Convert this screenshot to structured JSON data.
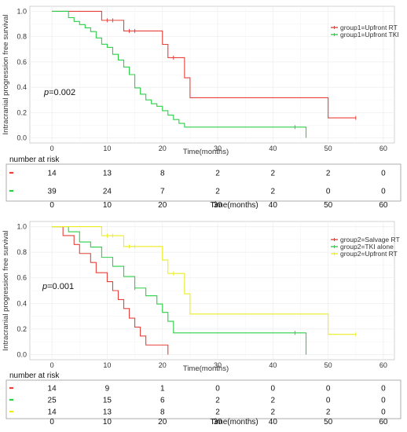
{
  "chart_data": [
    {
      "type": "line",
      "ylabel": "Intracranial progression free survival",
      "xlabel": "Time(months)",
      "xlim": [
        -4,
        62
      ],
      "ylim": [
        -0.04,
        1.04
      ],
      "xticks": [
        0,
        10,
        20,
        30,
        40,
        50,
        60
      ],
      "yticks": [
        0.0,
        0.2,
        0.4,
        0.6,
        0.8,
        1.0
      ],
      "ytick_labels": [
        "0.0",
        "0.2",
        "0.4",
        "0.6",
        "0.8",
        "1.0"
      ],
      "grid": true,
      "legend_position": "top-right",
      "p_value": {
        "label": "p",
        "text": "=0.002"
      },
      "series": [
        {
          "name": "group1=Upfront RT",
          "color": "#e8413b",
          "steps": [
            [
              0,
              1.0
            ],
            [
              9,
              0.929
            ],
            [
              13,
              0.845
            ],
            [
              20,
              0.739
            ],
            [
              21,
              0.634
            ],
            [
              24,
              0.475
            ],
            [
              25,
              0.317
            ],
            [
              50,
              0.158
            ],
            [
              55,
              0.158
            ]
          ],
          "censor": [
            [
              10,
              0.929
            ],
            [
              11,
              0.929
            ],
            [
              14,
              0.845
            ],
            [
              15,
              0.845
            ],
            [
              22,
              0.634
            ],
            [
              55,
              0.158
            ]
          ]
        },
        {
          "name": "group1=Upfront TKI",
          "color": "#2bcf46",
          "steps": [
            [
              0,
              1.0
            ],
            [
              3,
              0.95
            ],
            [
              4,
              0.92
            ],
            [
              5,
              0.895
            ],
            [
              6,
              0.87
            ],
            [
              7,
              0.84
            ],
            [
              8,
              0.79
            ],
            [
              9,
              0.74
            ],
            [
              10,
              0.715
            ],
            [
              11,
              0.66
            ],
            [
              12,
              0.615
            ],
            [
              13,
              0.56
            ],
            [
              14,
              0.5
            ],
            [
              15,
              0.395
            ],
            [
              16,
              0.345
            ],
            [
              17,
              0.3
            ],
            [
              18,
              0.27
            ],
            [
              19,
              0.25
            ],
            [
              20,
              0.215
            ],
            [
              21,
              0.18
            ],
            [
              22,
              0.145
            ],
            [
              23,
              0.115
            ],
            [
              24,
              0.085
            ],
            [
              46,
              0.0
            ]
          ],
          "censor": [
            [
              44,
              0.085
            ]
          ]
        }
      ],
      "risk_table": {
        "title": "number at risk",
        "times": [
          0,
          10,
          20,
          30,
          40,
          50,
          60
        ],
        "tick_labels": [
          "0",
          "10",
          "20",
          "30",
          "40",
          "50",
          "60"
        ],
        "xlabel": "Time(months)",
        "rows": [
          {
            "color": "#e8413b",
            "values": [
              "14",
              "13",
              "8",
              "2",
              "2",
              "2",
              "0"
            ]
          },
          {
            "color": "#2bcf46",
            "values": [
              "39",
              "24",
              "7",
              "2",
              "2",
              "0",
              "0"
            ]
          }
        ]
      }
    },
    {
      "type": "line",
      "ylabel": "Intracranial progression free survival",
      "xlabel": "Time(months)",
      "xlim": [
        -4,
        62
      ],
      "ylim": [
        -0.04,
        1.04
      ],
      "xticks": [
        0,
        10,
        20,
        30,
        40,
        50,
        60
      ],
      "yticks": [
        0.0,
        0.2,
        0.4,
        0.6,
        0.8,
        1.0
      ],
      "ytick_labels": [
        "0.0",
        "0.2",
        "0.4",
        "0.6",
        "0.8",
        "1.0"
      ],
      "grid": true,
      "legend_position": "top-right",
      "p_value": {
        "label": "p",
        "text": "=0.001"
      },
      "series": [
        {
          "name": "group2=Salvage RT",
          "color": "#e8413b",
          "steps": [
            [
              0,
              1.0
            ],
            [
              2,
              0.93
            ],
            [
              4,
              0.86
            ],
            [
              5,
              0.79
            ],
            [
              7,
              0.72
            ],
            [
              8,
              0.64
            ],
            [
              10,
              0.57
            ],
            [
              11,
              0.5
            ],
            [
              12,
              0.43
            ],
            [
              13,
              0.36
            ],
            [
              14,
              0.285
            ],
            [
              15,
              0.215
            ],
            [
              16,
              0.145
            ],
            [
              17,
              0.075
            ],
            [
              21,
              0.0
            ]
          ],
          "censor": []
        },
        {
          "name": "group2=TKI alone",
          "color": "#2bcf46",
          "steps": [
            [
              0,
              1.0
            ],
            [
              3,
              0.96
            ],
            [
              5,
              0.88
            ],
            [
              7,
              0.84
            ],
            [
              9,
              0.76
            ],
            [
              11,
              0.69
            ],
            [
              13,
              0.61
            ],
            [
              15,
              0.52
            ],
            [
              16,
              0.52
            ],
            [
              17,
              0.46
            ],
            [
              19,
              0.395
            ],
            [
              20,
              0.33
            ],
            [
              21,
              0.26
            ],
            [
              22,
              0.17
            ],
            [
              46,
              0.0
            ]
          ],
          "censor": [
            [
              15,
              0.52
            ],
            [
              44,
              0.17
            ]
          ]
        },
        {
          "name": "group2=Upfront RT",
          "color": "#ecec21",
          "steps": [
            [
              0,
              1.0
            ],
            [
              9,
              0.929
            ],
            [
              13,
              0.845
            ],
            [
              20,
              0.739
            ],
            [
              21,
              0.634
            ],
            [
              24,
              0.475
            ],
            [
              25,
              0.317
            ],
            [
              50,
              0.158
            ],
            [
              55,
              0.158
            ]
          ],
          "censor": [
            [
              10,
              0.929
            ],
            [
              11,
              0.929
            ],
            [
              14,
              0.845
            ],
            [
              15,
              0.845
            ],
            [
              22,
              0.634
            ],
            [
              55,
              0.158
            ]
          ]
        }
      ],
      "risk_table": {
        "title": "number at risk",
        "times": [
          0,
          10,
          20,
          30,
          40,
          50,
          60
        ],
        "tick_labels": [
          "0",
          "10",
          "20",
          "30",
          "40",
          "50",
          "60"
        ],
        "xlabel": "Time(months)",
        "rows": [
          {
            "color": "#e8413b",
            "values": [
              "14",
              "9",
              "1",
              "0",
              "0",
              "0",
              "0"
            ]
          },
          {
            "color": "#2bcf46",
            "values": [
              "25",
              "15",
              "6",
              "2",
              "2",
              "0",
              "0"
            ]
          },
          {
            "color": "#ecec21",
            "values": [
              "14",
              "13",
              "8",
              "2",
              "2",
              "2",
              "0"
            ]
          }
        ]
      }
    }
  ]
}
